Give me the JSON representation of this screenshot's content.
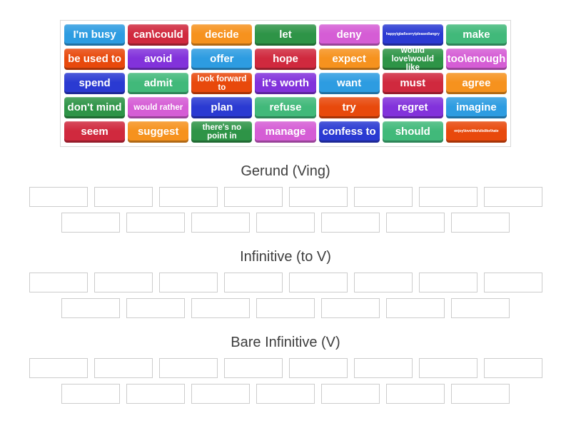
{
  "colors": {
    "blue": "#2d9ce1",
    "red": "#d0293e",
    "orange": "#f6921e",
    "green": "#2e9447",
    "orchid": "#d55dd5",
    "royal": "#2a3ad2",
    "emerald": "#41b97a",
    "vermilion": "#e8490c",
    "violet": "#8232db"
  },
  "board": {
    "tiles": [
      {
        "label": "I'm busy",
        "color": "blue"
      },
      {
        "label": "can\\could",
        "color": "red"
      },
      {
        "label": "decide",
        "color": "orange"
      },
      {
        "label": "let",
        "color": "green"
      },
      {
        "label": "deny",
        "color": "orchid"
      },
      {
        "label": "happy\\glad\\sorry\\pleased\\angry",
        "color": "royal"
      },
      {
        "label": "make",
        "color": "emerald"
      },
      {
        "label": "be used to",
        "color": "vermilion"
      },
      {
        "label": "avoid",
        "color": "violet"
      },
      {
        "label": "offer",
        "color": "blue"
      },
      {
        "label": "hope",
        "color": "red"
      },
      {
        "label": "expect",
        "color": "orange"
      },
      {
        "label": "would love\\would like",
        "color": "green"
      },
      {
        "label": "too\\enough",
        "color": "orchid"
      },
      {
        "label": "spend",
        "color": "royal"
      },
      {
        "label": "admit",
        "color": "emerald"
      },
      {
        "label": "look forward to",
        "color": "vermilion"
      },
      {
        "label": "it's worth",
        "color": "violet"
      },
      {
        "label": "want",
        "color": "blue"
      },
      {
        "label": "must",
        "color": "red"
      },
      {
        "label": "agree",
        "color": "orange"
      },
      {
        "label": "don't mind",
        "color": "green"
      },
      {
        "label": "would rather",
        "color": "orchid"
      },
      {
        "label": "plan",
        "color": "royal"
      },
      {
        "label": "refuse",
        "color": "emerald"
      },
      {
        "label": "try",
        "color": "vermilion"
      },
      {
        "label": "regret",
        "color": "violet"
      },
      {
        "label": "imagine",
        "color": "blue"
      },
      {
        "label": "seem",
        "color": "red"
      },
      {
        "label": "suggest",
        "color": "orange"
      },
      {
        "label": "there's no point in",
        "color": "green"
      },
      {
        "label": "manage",
        "color": "orchid"
      },
      {
        "label": "confess to",
        "color": "royal"
      },
      {
        "label": "should",
        "color": "emerald"
      },
      {
        "label": "enjoy\\love\\like\\dislike\\hate",
        "color": "vermilion"
      }
    ]
  },
  "groups": [
    {
      "title": "Gerund (Ving)",
      "slots_row1": 8,
      "slots_row2": 7
    },
    {
      "title": "Infinitive (to V)",
      "slots_row1": 8,
      "slots_row2": 7
    },
    {
      "title": "Bare Infinitive (V)",
      "slots_row1": 8,
      "slots_row2": 7
    }
  ]
}
